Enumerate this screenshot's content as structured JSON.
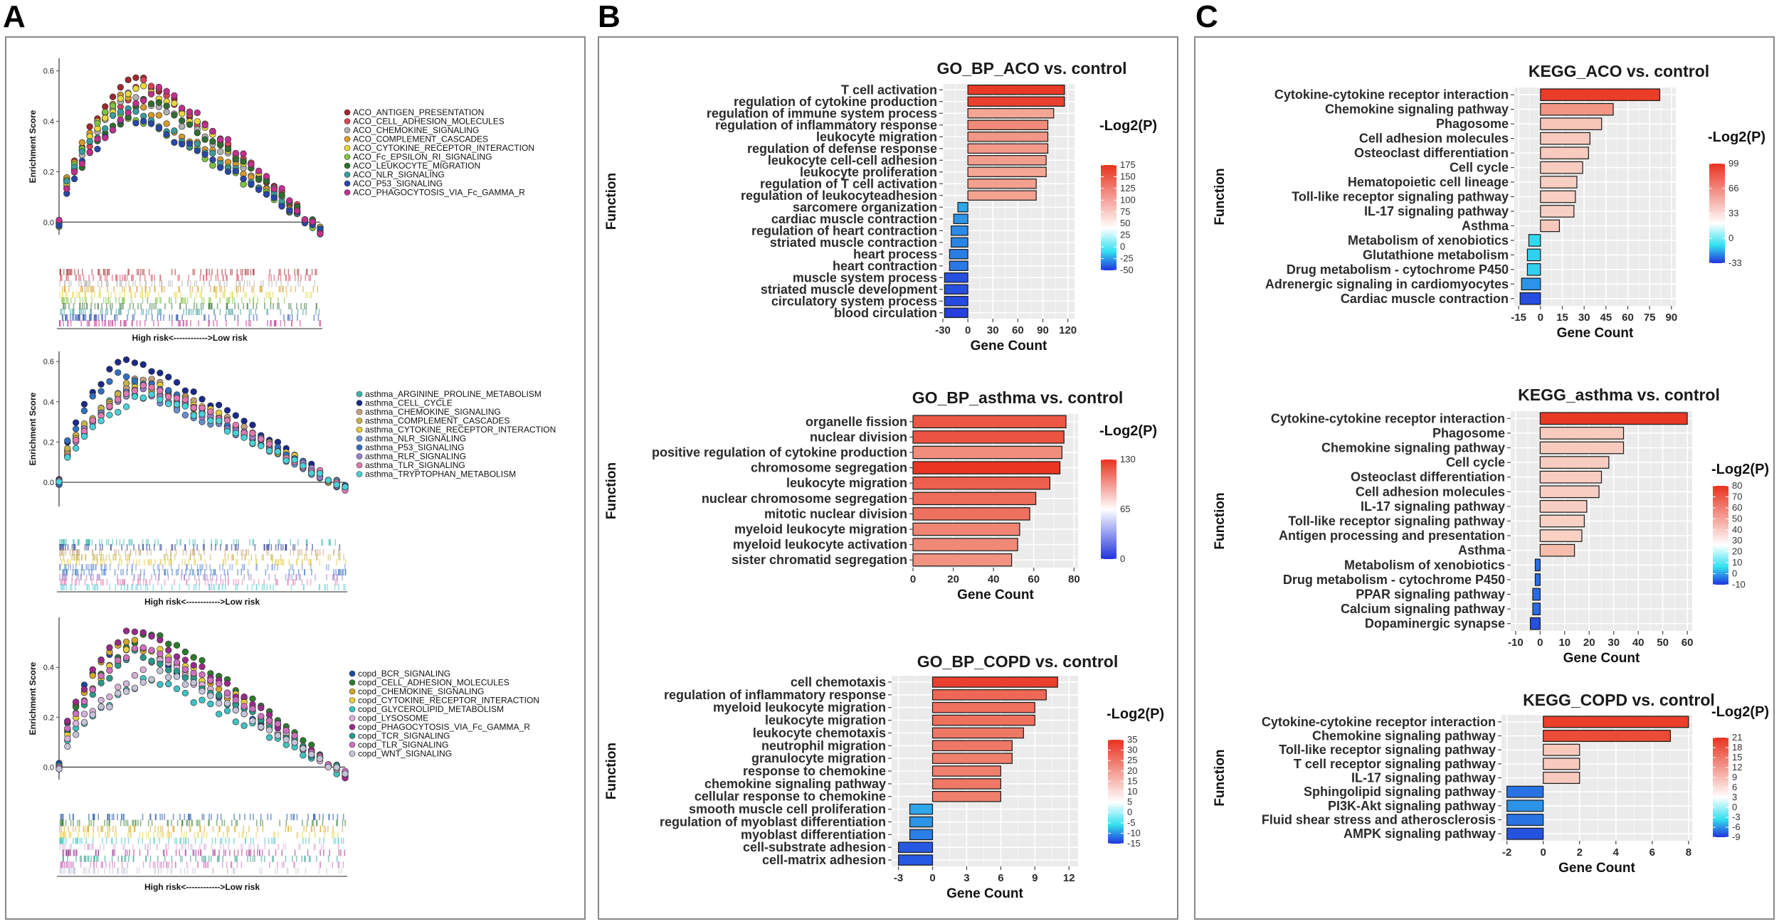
{
  "panels": {
    "a": "A",
    "b": "B",
    "c": "C"
  },
  "colors": {
    "neg": "#2233dd",
    "mid": "#ffffff",
    "pos": "#e8321e",
    "grid": "#ebebeb",
    "cyanMid": "#33e0f0"
  },
  "chart_data": [
    {
      "id": "gsea_aco",
      "type": "line",
      "panel": "A",
      "ylabel": "Enrichment Score",
      "xlabel": "High risk<------------>Low risk",
      "yticks": [
        "0.6",
        "0.4",
        "0.2",
        "0.0"
      ],
      "ylim": [
        -0.05,
        0.65
      ],
      "series": [
        {
          "name": "ACO_ANTIGEN_PRESENTATION",
          "color": "#a0282d",
          "peak": 0.59,
          "peakAt": 0.28
        },
        {
          "name": "ACO_CELL_ADHESION_MOLECULES",
          "color": "#d7445a",
          "peak": 0.55,
          "peakAt": 0.32
        },
        {
          "name": "ACO_CHEMOKINE_SIGNALING",
          "color": "#b0b0b0",
          "peak": 0.52,
          "peakAt": 0.27
        },
        {
          "name": "ACO_COMPLEMENT_CASCADES",
          "color": "#d69a2a",
          "peak": 0.5,
          "peakAt": 0.22
        },
        {
          "name": "ACO_CYTOKINE_RECEPTOR_INTERACTION",
          "color": "#e8d83a",
          "peak": 0.55,
          "peakAt": 0.3
        },
        {
          "name": "ACO_Fc_EPSILON_RI_SIGNALING",
          "color": "#7fc341",
          "peak": 0.45,
          "peakAt": 0.2
        },
        {
          "name": "ACO_LEUKOCYTE_MIGRATION",
          "color": "#2f6e2f",
          "peak": 0.49,
          "peakAt": 0.34
        },
        {
          "name": "ACO_NLR_SIGNALING",
          "color": "#3a9b9b",
          "peak": 0.46,
          "peakAt": 0.24
        },
        {
          "name": "ACO_P53_SIGNALING",
          "color": "#2748a8",
          "peak": 0.42,
          "peakAt": 0.26
        },
        {
          "name": "ACO_PHAGOCYTOSIS_VIA_Fc_GAMMA_R",
          "color": "#c1308e",
          "peak": 0.53,
          "peakAt": 0.38
        }
      ]
    },
    {
      "id": "gsea_asthma",
      "type": "line",
      "panel": "A",
      "ylabel": "Enrichment Score",
      "xlabel": "High risk<------------>Low risk",
      "yticks": [
        "0.6",
        "0.4",
        "0.2",
        "0.0"
      ],
      "ylim": [
        -0.12,
        0.65
      ],
      "series": [
        {
          "name": "asthma_ARGININE_PROLINE_METABOLISM",
          "color": "#3ab5b0",
          "peak": 0.5,
          "peakAt": 0.26
        },
        {
          "name": "asthma_CELL_CYCLE",
          "color": "#1a2a8a",
          "peak": 0.62,
          "peakAt": 0.22
        },
        {
          "name": "asthma_CHEMOKINE_SIGNALING",
          "color": "#c7a27a",
          "peak": 0.52,
          "peakAt": 0.28
        },
        {
          "name": "asthma_COMPLEMENT_CASCADES",
          "color": "#c8b24a",
          "peak": 0.48,
          "peakAt": 0.24
        },
        {
          "name": "asthma_CYTOKINE_RECEPTOR_INTERACTION",
          "color": "#e8c93a",
          "peak": 0.5,
          "peakAt": 0.3
        },
        {
          "name": "asthma_NLR_SIGNALING",
          "color": "#6a8fd0",
          "peak": 0.45,
          "peakAt": 0.25
        },
        {
          "name": "asthma_P53_SIGNALING",
          "color": "#3070c0",
          "peak": 0.55,
          "peakAt": 0.2
        },
        {
          "name": "asthma_RLR_SIGNALING",
          "color": "#9a7ec8",
          "peak": 0.47,
          "peakAt": 0.27
        },
        {
          "name": "asthma_TLR_SIGNALING",
          "color": "#e07ab0",
          "peak": 0.49,
          "peakAt": 0.29
        },
        {
          "name": "asthma_TRYPTOPHAN_METABOLISM",
          "color": "#4ad0d8",
          "peak": 0.44,
          "peakAt": 0.3
        }
      ]
    },
    {
      "id": "gsea_copd",
      "type": "line",
      "panel": "A",
      "ylabel": "Enrichment Score",
      "xlabel": "High risk<------------>Low risk",
      "yticks": [
        "0.4",
        "0.2",
        "0.0"
      ],
      "ylim": [
        -0.05,
        0.6
      ],
      "series": [
        {
          "name": "copd_BCR_SIGNALING",
          "color": "#1a4aa0",
          "peak": 0.5,
          "peakAt": 0.2
        },
        {
          "name": "copd_CELL_ADHESION_MOLECULES",
          "color": "#2d7a2d",
          "peak": 0.55,
          "peakAt": 0.3
        },
        {
          "name": "copd_CHEMOKINE_SIGNALING",
          "color": "#d6a62a",
          "peak": 0.52,
          "peakAt": 0.22
        },
        {
          "name": "copd_CYTOKINE_RECEPTOR_INTERACTION",
          "color": "#e8d040",
          "peak": 0.5,
          "peakAt": 0.28
        },
        {
          "name": "copd_GLYCEROLIPID_METABOLISM",
          "color": "#3fc2c2",
          "peak": 0.35,
          "peakAt": 0.3
        },
        {
          "name": "copd_LYSOSOME",
          "color": "#d9b0d9",
          "peak": 0.42,
          "peakAt": 0.34
        },
        {
          "name": "copd_PHAGOCYTOSIS_VIA_Fc_GAMMA_R",
          "color": "#9a2a8a",
          "peak": 0.56,
          "peakAt": 0.24
        },
        {
          "name": "copd_TCR_SIGNALING",
          "color": "#2a9a8a",
          "peak": 0.46,
          "peakAt": 0.26
        },
        {
          "name": "copd_TLR_SIGNALING",
          "color": "#d070c0",
          "peak": 0.5,
          "peakAt": 0.28
        },
        {
          "name": "copd_WNT_SIGNALING",
          "color": "#c4c4d8",
          "peak": 0.38,
          "peakAt": 0.36
        }
      ]
    },
    {
      "id": "go_aco",
      "type": "bar",
      "orientation": "horizontal",
      "panel": "B",
      "title": "GO_BP_ACO vs. control",
      "xlabel": "Gene Count",
      "ylabel": "Function",
      "xlim": [
        -30,
        128
      ],
      "xticks": [
        -30,
        0,
        30,
        60,
        90,
        120
      ],
      "legend_title": "-Log2(P)",
      "cmin": -50,
      "cmax": 175,
      "legend_ticks": [
        175,
        150,
        125,
        100,
        75,
        50,
        25,
        0,
        -25,
        -50
      ],
      "categories": [
        "T cell activation",
        "regulation of cytokine production",
        "regulation of immune system process",
        "regulation of inflammatory response",
        "leukocyte migration",
        "regulation of defense response",
        "leukocyte cell-cell adhesion",
        "leukocyte proliferation",
        "regulation of T cell activation",
        "regulation of leukocyteadhesion",
        "sarcomere organization",
        "cardiac muscle contraction",
        "regulation of heart contraction",
        "striated muscle contraction",
        "heart process",
        "heart contraction",
        "muscle system process",
        "striated muscle development",
        "circulatory system process",
        "blood circulation"
      ],
      "values": [
        116,
        116,
        103,
        96,
        96,
        96,
        94,
        94,
        82,
        82,
        -12,
        -17,
        -20,
        -20,
        -22,
        -22,
        -28,
        -28,
        -28,
        -28
      ],
      "color_values": [
        170,
        165,
        100,
        118,
        110,
        108,
        105,
        100,
        104,
        102,
        -30,
        -33,
        -35,
        -36,
        -37,
        -38,
        -45,
        -45,
        -46,
        -48
      ]
    },
    {
      "id": "go_asthma",
      "type": "bar",
      "orientation": "horizontal",
      "panel": "B",
      "title": "GO_BP_asthma vs. control",
      "xlabel": "Gene Count",
      "ylabel": "Function",
      "xlim": [
        0,
        82
      ],
      "xticks": [
        0,
        20,
        40,
        60,
        80
      ],
      "legend_title": "-Log2(P)",
      "cmin": 0,
      "cmax": 130,
      "legend_ticks": [
        130,
        65,
        0
      ],
      "categories": [
        "organelle fission",
        "nuclear division",
        "positive regulation of cytokine production",
        "chromosome segregation",
        "leukocyte migration",
        "nuclear chromosome segregation",
        "mitotic nuclear division",
        "myeloid leukocyte migration",
        "myeloid leukocyte activation",
        "sister chromatid segregation"
      ],
      "values": [
        76,
        75,
        74,
        73,
        68,
        61,
        58,
        53,
        52,
        49
      ],
      "color_values": [
        112,
        114,
        86,
        128,
        108,
        102,
        100,
        90,
        88,
        84
      ]
    },
    {
      "id": "go_copd",
      "type": "bar",
      "orientation": "horizontal",
      "panel": "B",
      "title": "GO_BP_COPD vs. control",
      "xlabel": "Gene Count",
      "ylabel": "Function",
      "xlim": [
        -3.6,
        12.8
      ],
      "xticks": [
        -3,
        0,
        3,
        6,
        9,
        12
      ],
      "legend_title": "-Log2(P)",
      "cmin": -15,
      "cmax": 35,
      "legend_ticks": [
        35,
        30,
        25,
        20,
        15,
        10,
        5,
        0,
        -5,
        -10,
        -15
      ],
      "categories": [
        "cell chemotaxis",
        "regulation of inflammatory response",
        "myeloid leukocyte migration",
        "leukocyte migration",
        "leukocyte chemotaxis",
        "neutrophil migration",
        "granulocyte migration",
        "response to chemokine",
        "chemokine signaling pathway",
        "cellular response to chemokine",
        "smooth muscle cell proliferation",
        "regulation of myoblast differentiation",
        "myoblast differentiation",
        "cell-substrate adhesion",
        "cell-matrix adhesion"
      ],
      "values": [
        11,
        10,
        9,
        9,
        8,
        7,
        7,
        6,
        6,
        6,
        -2,
        -2,
        -2,
        -3,
        -3
      ],
      "color_values": [
        33,
        28,
        27,
        27,
        26,
        26,
        25,
        25,
        26,
        25,
        -9,
        -10,
        -11,
        -13,
        -13
      ]
    },
    {
      "id": "kegg_aco",
      "type": "bar",
      "orientation": "horizontal",
      "panel": "C",
      "title": "KEGG_ACO vs. control",
      "xlabel": "Gene Count",
      "ylabel": "Function",
      "xlim": [
        -18,
        93
      ],
      "xticks": [
        -15,
        0,
        15,
        30,
        45,
        60,
        75,
        90
      ],
      "legend_title": "-Log2(P)",
      "cmin": -33,
      "cmax": 99,
      "legend_ticks": [
        99,
        66,
        33,
        0,
        -33
      ],
      "categories": [
        "Cytokine-cytokine receptor interaction",
        "Chemokine signaling pathway",
        "Phagosome",
        "Cell adhesion molecules",
        "Osteoclast differentiation",
        "Cell cycle",
        "Hematopoietic cell lineage",
        "Toll-like receptor signaling pathway",
        "IL-17 signaling pathway",
        "Asthma",
        "Metabolism of xenobiotics",
        "Glutathione metabolism",
        "Drug metabolism - cytochrome P450",
        "Adrenergic signaling in cardiomyocytes",
        "Cardiac muscle contraction"
      ],
      "values": [
        82,
        50,
        42,
        34,
        33,
        29,
        25,
        24,
        23,
        13,
        -8,
        -9,
        -9,
        -13,
        -14
      ],
      "color_values": [
        95,
        62,
        40,
        38,
        37,
        36,
        34,
        34,
        33,
        38,
        -14,
        -15,
        -15,
        -22,
        -30
      ]
    },
    {
      "id": "kegg_asthma",
      "type": "bar",
      "orientation": "horizontal",
      "panel": "C",
      "title": "KEGG_asthma vs. control",
      "xlabel": "Gene Count",
      "ylabel": "Function",
      "xlim": [
        -12,
        62
      ],
      "xticks": [
        -10,
        0,
        10,
        20,
        30,
        40,
        50,
        60
      ],
      "legend_title": "-Log2(P)",
      "cmin": -10,
      "cmax": 80,
      "legend_ticks": [
        80,
        70,
        60,
        50,
        40,
        30,
        20,
        10,
        0,
        -10
      ],
      "categories": [
        "Cytokine-cytokine receptor interaction",
        "Phagosome",
        "Chemokine signaling pathway",
        "Cell cycle",
        "Osteoclast differentiation",
        "Cell adhesion molecules",
        "IL-17 signaling pathway",
        "Toll-like receptor signaling pathway",
        "Antigen processing and presentation",
        "Asthma",
        "Metabolism of xenobiotics",
        "Drug metabolism - cytochrome P450",
        "PPAR signaling pathway",
        "Calcium signaling pathway",
        "Dopaminergic synapse"
      ],
      "values": [
        60,
        34,
        34,
        28,
        25,
        24,
        19,
        18,
        17,
        14,
        -2,
        -2,
        -3,
        -3,
        -4
      ],
      "color_values": [
        78,
        30,
        30,
        29,
        28,
        28,
        28,
        27,
        27,
        38,
        -8,
        -8,
        -8,
        -8,
        -9
      ]
    },
    {
      "id": "kegg_copd",
      "type": "bar",
      "orientation": "horizontal",
      "panel": "C",
      "title": "KEGG_COPD vs. control",
      "xlabel": "Gene Count",
      "ylabel": "Function",
      "xlim": [
        -2.3,
        8.2
      ],
      "xticks": [
        -2,
        0,
        2,
        4,
        6,
        8
      ],
      "legend_title": "-Log2(P)",
      "cmin": -9,
      "cmax": 21,
      "legend_ticks": [
        21,
        18,
        15,
        12,
        9,
        6,
        3,
        0,
        -3,
        -6,
        -9
      ],
      "categories": [
        "Cytokine-cytokine receptor interaction",
        "Chemokine signaling pathway",
        "Toll-like receptor signaling pathway",
        "T cell receptor signaling pathway",
        "IL-17 signaling pathway",
        "Sphingolipid signaling pathway",
        "PI3K-Akt signaling pathway",
        "Fluid shear stress and atherosclerosis",
        "AMPK signaling pathway"
      ],
      "values": [
        8,
        7,
        2,
        2,
        2,
        -2,
        -2,
        -2,
        -2
      ],
      "color_values": [
        20,
        19,
        8,
        8,
        8,
        -7,
        -6,
        -7,
        -8
      ]
    }
  ]
}
